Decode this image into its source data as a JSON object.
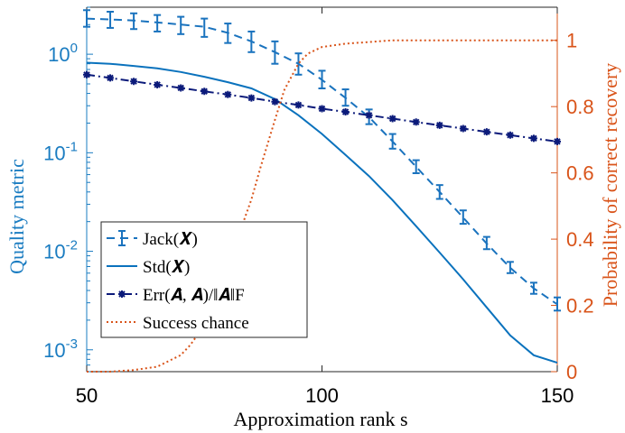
{
  "chart_data": {
    "type": "line",
    "xlabel": "Approximation rank s",
    "ylabel_left": "Quality metric",
    "ylabel_right": "Probability of correct recovery",
    "xlim": [
      50,
      150
    ],
    "ylim_left": [
      0.0006,
      3
    ],
    "ylim_right": [
      0,
      1.1
    ],
    "y_left_scale": "log",
    "x_ticks": [
      "50",
      "100",
      "150"
    ],
    "y_left_ticks": [
      {
        "base": "10",
        "exp": "-3"
      },
      {
        "base": "10",
        "exp": "-2"
      },
      {
        "base": "10",
        "exp": "-1"
      },
      {
        "base": "10",
        "exp": "0"
      }
    ],
    "y_right_ticks": [
      "0",
      "0.2",
      "0.4",
      "0.6",
      "0.8",
      "1"
    ],
    "grid": false,
    "legend_position": "bottom-left",
    "colors": {
      "jack": "#1a73be",
      "std": "#0a72bd",
      "err": "#0b1a7a",
      "success": "#d9541a",
      "left_axis": "#1a7cc1",
      "right_axis": "#d9541a"
    },
    "series": [
      {
        "name": "Jack(X)",
        "legend": "Jack(𝑿)",
        "axis": "left",
        "style": "dashed-errorbar",
        "x": [
          50,
          55,
          60,
          65,
          70,
          75,
          80,
          85,
          90,
          95,
          100,
          105,
          110,
          115,
          120,
          125,
          130,
          135,
          140,
          145,
          150
        ],
        "y": [
          2.3,
          2.25,
          2.2,
          2.1,
          2.0,
          1.9,
          1.65,
          1.35,
          1.05,
          0.8,
          0.55,
          0.36,
          0.23,
          0.13,
          0.072,
          0.04,
          0.022,
          0.012,
          0.0068,
          0.0042,
          0.0029
        ],
        "err_lo": [
          1.9,
          1.85,
          1.8,
          1.7,
          1.6,
          1.5,
          1.3,
          1.05,
          0.8,
          0.62,
          0.45,
          0.3,
          0.195,
          0.11,
          0.062,
          0.034,
          0.019,
          0.0105,
          0.006,
          0.0037,
          0.0025
        ],
        "err_hi": [
          2.8,
          2.7,
          2.6,
          2.5,
          2.4,
          2.3,
          2.05,
          1.7,
          1.35,
          1.02,
          0.68,
          0.44,
          0.275,
          0.155,
          0.084,
          0.047,
          0.026,
          0.014,
          0.0078,
          0.0048,
          0.0034
        ]
      },
      {
        "name": "Std(X)",
        "legend": "Std(𝑿)",
        "axis": "left",
        "style": "solid",
        "x": [
          50,
          55,
          60,
          65,
          70,
          75,
          80,
          85,
          90,
          95,
          100,
          105,
          110,
          115,
          120,
          125,
          130,
          135,
          140,
          145,
          150
        ],
        "y": [
          0.82,
          0.8,
          0.76,
          0.72,
          0.66,
          0.59,
          0.52,
          0.45,
          0.35,
          0.24,
          0.155,
          0.095,
          0.058,
          0.033,
          0.018,
          0.0097,
          0.0052,
          0.0027,
          0.0014,
          0.00088,
          0.00074
        ]
      },
      {
        "name": "Err(Â, A)/‖A‖F",
        "legend": "Err(𝑨̂, 𝑨)/‖𝑨‖F",
        "axis": "left",
        "style": "dashdot-star",
        "x": [
          50,
          55,
          60,
          65,
          70,
          75,
          80,
          85,
          90,
          95,
          100,
          105,
          110,
          115,
          120,
          125,
          130,
          135,
          140,
          145,
          150
        ],
        "y": [
          0.62,
          0.575,
          0.53,
          0.49,
          0.455,
          0.42,
          0.39,
          0.36,
          0.33,
          0.305,
          0.28,
          0.26,
          0.24,
          0.222,
          0.205,
          0.19,
          0.176,
          0.163,
          0.151,
          0.14,
          0.13
        ]
      },
      {
        "name": "Success chance",
        "legend": "Success chance",
        "axis": "right",
        "style": "dotted",
        "x": [
          50,
          55,
          60,
          65,
          70,
          72,
          75,
          78,
          80,
          82,
          85,
          87,
          90,
          92,
          95,
          97,
          100,
          105,
          110,
          115,
          120,
          130,
          140,
          150
        ],
        "y": [
          0,
          0.0,
          0.005,
          0.015,
          0.05,
          0.08,
          0.14,
          0.22,
          0.3,
          0.4,
          0.52,
          0.62,
          0.76,
          0.85,
          0.93,
          0.96,
          0.98,
          0.99,
          0.995,
          1.0,
          1.0,
          1.0,
          1.0,
          1.0
        ]
      }
    ]
  }
}
